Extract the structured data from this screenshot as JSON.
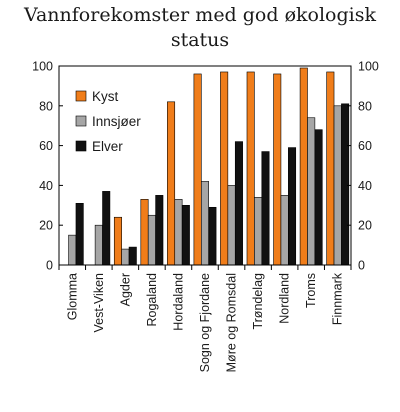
{
  "chart_data": {
    "type": "bar",
    "title_line1": "Vannforekomster med god økologisk",
    "title_line2": "status",
    "categories": [
      "Glomma",
      "Vest-Viken",
      "Agder",
      "Rogaland",
      "Hordaland",
      "Sogn og Fjordane",
      "Møre og Romsdal",
      "Trøndelag",
      "Nordland",
      "Troms",
      "Finnmark"
    ],
    "series": [
      {
        "name": "Kyst",
        "color": "#f07d1a",
        "values": [
          null,
          null,
          24,
          33,
          82,
          96,
          97,
          97,
          96,
          99,
          97
        ]
      },
      {
        "name": "Innsjøer",
        "color": "#a6a6a6",
        "values": [
          15,
          20,
          8,
          25,
          33,
          42,
          40,
          34,
          35,
          74,
          80
        ]
      },
      {
        "name": "Elver",
        "color": "#111111",
        "values": [
          31,
          37,
          9,
          35,
          30,
          29,
          62,
          57,
          59,
          68,
          81
        ]
      }
    ],
    "ylim": [
      0,
      100
    ],
    "yticks": [
      0,
      20,
      40,
      60,
      80,
      100
    ],
    "y_tick_labels": [
      "0",
      "20",
      "40",
      "60",
      "80",
      "100"
    ],
    "secondary_y_axis": true,
    "legend_placement": "top-left",
    "grid": false
  }
}
